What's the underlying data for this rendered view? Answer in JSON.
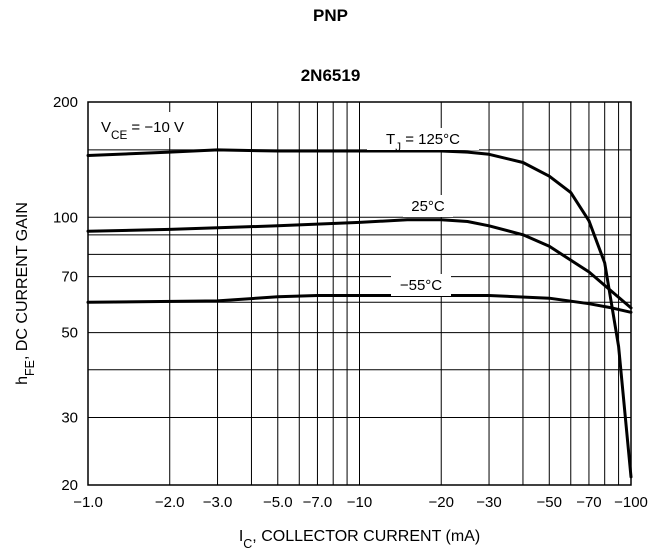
{
  "chart_data": {
    "type": "line",
    "title": "PNP",
    "subtitle": "2N6519",
    "xlabel": {
      "main": "I",
      "sub": "C",
      "rest": ", COLLECTOR CURRENT (mA)"
    },
    "ylabel": {
      "main": "h",
      "sub": "FE",
      "rest": ", DC CURRENT GAIN"
    },
    "x_scale": "log",
    "y_scale": "log",
    "xlim": [
      -1.0,
      -100
    ],
    "ylim": [
      20,
      200
    ],
    "x_ticks": [
      {
        "value": 1,
        "label": "−1.0"
      },
      {
        "value": 2,
        "label": "−2.0"
      },
      {
        "value": 3,
        "label": "−3.0"
      },
      {
        "value": 5,
        "label": "−5.0"
      },
      {
        "value": 7,
        "label": "−7.0"
      },
      {
        "value": 10,
        "label": "−10"
      },
      {
        "value": 20,
        "label": "−20"
      },
      {
        "value": 30,
        "label": "−30"
      },
      {
        "value": 50,
        "label": "−50"
      },
      {
        "value": 70,
        "label": "−70"
      },
      {
        "value": 100,
        "label": "−100"
      }
    ],
    "y_ticks": [
      {
        "value": 20,
        "label": "20"
      },
      {
        "value": 30,
        "label": "30"
      },
      {
        "value": 50,
        "label": "50"
      },
      {
        "value": 70,
        "label": "70"
      },
      {
        "value": 100,
        "label": "100"
      },
      {
        "value": 200,
        "label": "200"
      }
    ],
    "x_grid": [
      1,
      2,
      3,
      4,
      5,
      6,
      7,
      8,
      9,
      10,
      20,
      30,
      40,
      50,
      60,
      70,
      80,
      90,
      100
    ],
    "y_grid": [
      20,
      30,
      40,
      50,
      60,
      70,
      80,
      90,
      100,
      150,
      200
    ],
    "grid": true,
    "condition": {
      "main": "V",
      "sub": "CE",
      "rest": " = −10 V"
    },
    "series": [
      {
        "name": "T_J = 125°C",
        "label": {
          "main": "T",
          "sub": "J",
          "rest": " = 125°C"
        },
        "points": [
          [
            1,
            145
          ],
          [
            2,
            148
          ],
          [
            3,
            150
          ],
          [
            5,
            149
          ],
          [
            10,
            149
          ],
          [
            20,
            149
          ],
          [
            25,
            148
          ],
          [
            30,
            146
          ],
          [
            40,
            139
          ],
          [
            50,
            128
          ],
          [
            60,
            116
          ],
          [
            70,
            98
          ],
          [
            80,
            76
          ],
          [
            90,
            46
          ],
          [
            100,
            21
          ]
        ]
      },
      {
        "name": "25°C",
        "label": {
          "main": "25°C",
          "sub": "",
          "rest": ""
        },
        "points": [
          [
            1,
            92
          ],
          [
            2,
            93
          ],
          [
            5,
            95
          ],
          [
            10,
            97
          ],
          [
            15,
            98.5
          ],
          [
            20,
            98.5
          ],
          [
            25,
            97.5
          ],
          [
            30,
            95
          ],
          [
            40,
            90
          ],
          [
            50,
            84
          ],
          [
            70,
            72
          ],
          [
            85,
            64
          ],
          [
            100,
            58
          ]
        ]
      },
      {
        "name": "−55°C",
        "label": {
          "main": "−55°C",
          "sub": "",
          "rest": ""
        },
        "points": [
          [
            1,
            60
          ],
          [
            3,
            60.5
          ],
          [
            5,
            62
          ],
          [
            7,
            62.5
          ],
          [
            10,
            62.5
          ],
          [
            20,
            62.5
          ],
          [
            30,
            62.5
          ],
          [
            50,
            61.5
          ],
          [
            70,
            59.5
          ],
          [
            85,
            58
          ],
          [
            100,
            56.5
          ]
        ]
      }
    ]
  }
}
